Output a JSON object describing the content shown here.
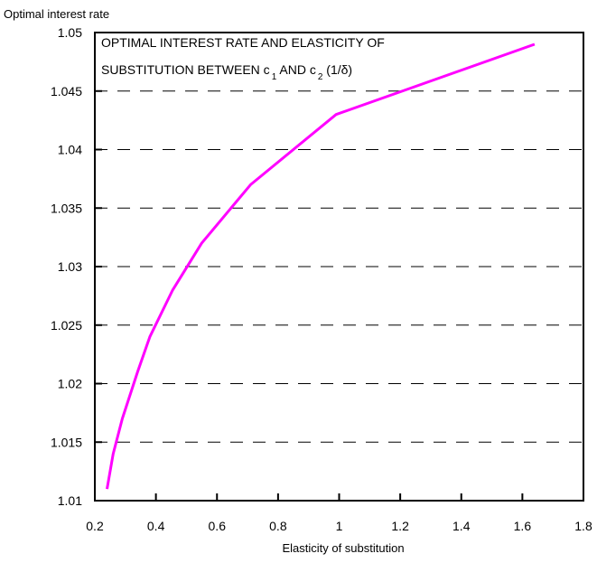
{
  "chart_data": {
    "type": "line",
    "title_line1": "OPTIMAL INTEREST RATE AND ELASTICITY OF",
    "title_line2_parts": [
      "SUBSTITUTION BETWEEN c",
      "1",
      " AND c",
      "2",
      "   (1/δ)"
    ],
    "ylabel": "Optimal  interest rate",
    "xlabel": "Elasticity  of  substitution",
    "xlim": [
      0.2,
      1.8
    ],
    "ylim": [
      1.01,
      1.05
    ],
    "x_ticks": [
      "0.2",
      "0.4",
      "0.6",
      "0.8",
      "1",
      "1.2",
      "1.4",
      "1.6",
      "1.8"
    ],
    "y_ticks": [
      "1.01",
      "1.015",
      "1.02",
      "1.025",
      "1.03",
      "1.035",
      "1.04",
      "1.045",
      "1.05"
    ],
    "grid": "horizontal dashed",
    "series": [
      {
        "color": "#ff00ff",
        "x": [
          0.24,
          0.26,
          0.29,
          0.34,
          0.38,
          0.455,
          0.55,
          0.71,
          0.99,
          1.64
        ],
        "y": [
          1.011,
          1.014,
          1.017,
          1.021,
          1.024,
          1.028,
          1.032,
          1.037,
          1.043,
          1.049
        ]
      }
    ]
  }
}
